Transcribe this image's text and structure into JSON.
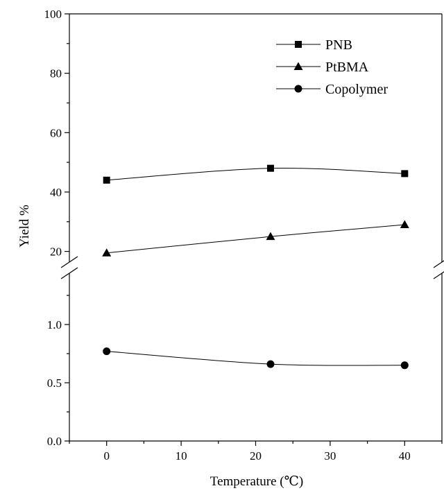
{
  "chart_data": {
    "type": "line",
    "title": "",
    "xlabel": "Temperature (℃)",
    "ylabel": "Yield %",
    "x": [
      0,
      22,
      40
    ],
    "xlim": [
      -5,
      45
    ],
    "x_ticks": [
      0,
      10,
      20,
      30,
      40
    ],
    "y_axis_break": true,
    "upper_panel": {
      "ylim": [
        15,
        100
      ],
      "y_ticks": [
        20,
        40,
        60,
        80,
        100
      ]
    },
    "lower_panel": {
      "ylim": [
        0,
        1.5
      ],
      "y_ticks": [
        "0.0",
        "0.5",
        "1.0"
      ]
    },
    "legend_position": "top-right",
    "grid": false,
    "series": [
      {
        "name": "PNB",
        "marker": "square",
        "panel": "upper",
        "values": [
          44,
          48,
          46.2
        ]
      },
      {
        "name": "PtBMA",
        "marker": "triangle",
        "panel": "upper",
        "values": [
          19.5,
          25,
          29
        ]
      },
      {
        "name": "Copolymer",
        "marker": "circle",
        "panel": "lower",
        "values": [
          0.77,
          0.66,
          0.65
        ]
      }
    ]
  }
}
